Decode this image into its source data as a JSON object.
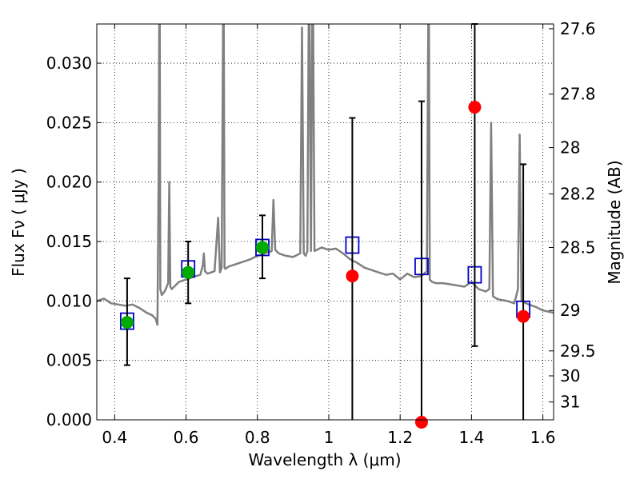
{
  "chart_data": {
    "type": "scatter",
    "xlabel": "Wavelength  λ (μm)",
    "ylabel": "Flux  Fν  ( μJy )",
    "y2label": "Magnitude (AB)",
    "xlim": [
      0.35,
      1.63
    ],
    "ylim": [
      0.0,
      0.0333
    ],
    "grid": true,
    "x_ticks": [
      {
        "value": 0.4,
        "label": "0.4"
      },
      {
        "value": 0.6,
        "label": "0.6"
      },
      {
        "value": 0.8,
        "label": "0.8"
      },
      {
        "value": 1.0,
        "label": "1"
      },
      {
        "value": 1.2,
        "label": "1.2"
      },
      {
        "value": 1.4,
        "label": "1.4"
      },
      {
        "value": 1.6,
        "label": "1.6"
      }
    ],
    "y_ticks": [
      {
        "value": 0.0,
        "label": "0.000"
      },
      {
        "value": 0.005,
        "label": "0.005"
      },
      {
        "value": 0.01,
        "label": "0.010"
      },
      {
        "value": 0.015,
        "label": "0.015"
      },
      {
        "value": 0.02,
        "label": "0.020"
      },
      {
        "value": 0.025,
        "label": "0.025"
      },
      {
        "value": 0.03,
        "label": "0.030"
      }
    ],
    "y2_ticks": [
      {
        "flux": 0.0329,
        "label": "27.6"
      },
      {
        "flux": 0.0274,
        "label": "27.8"
      },
      {
        "flux": 0.0229,
        "label": "28"
      },
      {
        "flux": 0.019,
        "label": "28.2"
      },
      {
        "flux": 0.0145,
        "label": "28.5"
      },
      {
        "flux": 0.0092,
        "label": "29"
      },
      {
        "flux": 0.0058,
        "label": "29.5"
      },
      {
        "flux": 0.0037,
        "label": "30"
      },
      {
        "flux": 0.0015,
        "label": "31"
      }
    ],
    "series": [
      {
        "kind": "model_spectrum",
        "color": "#808080",
        "x": [
          0.35,
          0.37,
          0.39,
          0.41,
          0.43,
          0.45,
          0.47,
          0.49,
          0.505,
          0.515,
          0.52,
          0.523,
          0.526,
          0.528,
          0.532,
          0.54,
          0.55,
          0.553,
          0.556,
          0.56,
          0.58,
          0.6,
          0.62,
          0.64,
          0.647,
          0.65,
          0.653,
          0.66,
          0.68,
          0.69,
          0.695,
          0.7,
          0.705,
          0.708,
          0.71,
          0.72,
          0.74,
          0.76,
          0.78,
          0.8,
          0.82,
          0.84,
          0.845,
          0.85,
          0.86,
          0.88,
          0.9,
          0.92,
          0.925,
          0.93,
          0.935,
          0.94,
          0.945,
          0.95,
          0.955,
          0.96,
          0.98,
          1.0,
          1.02,
          1.04,
          1.06,
          1.08,
          1.1,
          1.12,
          1.14,
          1.16,
          1.18,
          1.2,
          1.22,
          1.24,
          1.26,
          1.275,
          1.28,
          1.283,
          1.29,
          1.3,
          1.32,
          1.34,
          1.36,
          1.38,
          1.4,
          1.42,
          1.44,
          1.45,
          1.455,
          1.46,
          1.47,
          1.48,
          1.5,
          1.52,
          1.525,
          1.53,
          1.535,
          1.54,
          1.56,
          1.58,
          1.6,
          1.63
        ],
        "y": [
          0.01,
          0.0102,
          0.0098,
          0.0097,
          0.0096,
          0.0097,
          0.0094,
          0.009,
          0.0088,
          0.0085,
          0.008,
          0.02,
          0.04,
          0.011,
          0.0105,
          0.0108,
          0.0115,
          0.02,
          0.0112,
          0.011,
          0.0116,
          0.0118,
          0.012,
          0.0122,
          0.013,
          0.014,
          0.0125,
          0.0123,
          0.0125,
          0.017,
          0.0124,
          0.0128,
          0.04,
          0.0128,
          0.0127,
          0.0129,
          0.0131,
          0.0133,
          0.0135,
          0.0138,
          0.014,
          0.0142,
          0.0185,
          0.0143,
          0.014,
          0.0138,
          0.0137,
          0.014,
          0.033,
          0.014,
          0.0138,
          0.0142,
          0.04,
          0.0142,
          0.04,
          0.0142,
          0.0145,
          0.0143,
          0.0144,
          0.014,
          0.0135,
          0.0132,
          0.0128,
          0.0126,
          0.0124,
          0.0122,
          0.0123,
          0.0118,
          0.0123,
          0.012,
          0.0121,
          0.0125,
          0.04,
          0.0118,
          0.0116,
          0.0115,
          0.0115,
          0.0114,
          0.0113,
          0.0112,
          0.0116,
          0.011,
          0.0108,
          0.011,
          0.025,
          0.0104,
          0.0102,
          0.0101,
          0.01,
          0.0098,
          0.0104,
          0.011,
          0.024,
          0.01,
          0.0097,
          0.0095,
          0.0092,
          0.009
        ]
      },
      {
        "kind": "model_photometry",
        "marker": "open-square",
        "color": "#0000cc",
        "x": [
          0.435,
          0.606,
          0.814,
          1.066,
          1.26,
          1.409,
          1.545
        ],
        "y": [
          0.0083,
          0.0127,
          0.0145,
          0.0147,
          0.0129,
          0.0122,
          0.0093
        ]
      },
      {
        "kind": "detections",
        "marker": "filled-circle",
        "color": "#00aa00",
        "x": [
          0.435,
          0.606,
          0.814
        ],
        "y": [
          0.0082,
          0.0124,
          0.0145
        ],
        "yerr_low": [
          0.0046,
          0.0098,
          0.0119
        ],
        "yerr_high": [
          0.0119,
          0.015,
          0.0172
        ]
      },
      {
        "kind": "non_detections",
        "marker": "filled-circle",
        "color": "#ff0000",
        "x": [
          1.066,
          1.26,
          1.409,
          1.545
        ],
        "y": [
          0.0121,
          -0.0002,
          0.0263,
          0.0087
        ],
        "yerr_low": [
          0.0,
          0.0,
          0.0062,
          0.0
        ],
        "yerr_high": [
          0.0254,
          0.0268,
          0.0333,
          0.0215
        ]
      }
    ]
  }
}
